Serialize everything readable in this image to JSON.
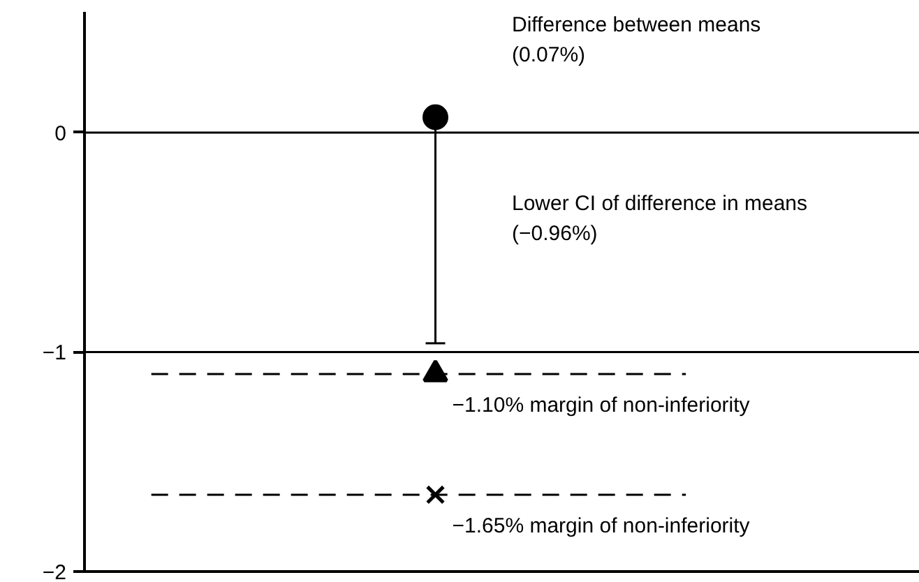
{
  "chart_data": {
    "type": "scatter",
    "categories": [
      null
    ],
    "ylim": [
      -2,
      0.55
    ],
    "yticks": [
      {
        "value": 0,
        "label": "0"
      },
      {
        "value": -1,
        "label": "−1"
      },
      {
        "value": -2,
        "label": "−2"
      }
    ],
    "tick_labels": "y",
    "grid": false,
    "series": [
      {
        "color": "#000000",
        "marker": "circle",
        "values": [
          0.07
        ],
        "errors": [
          [
            -0.96,
            0.07
          ]
        ]
      },
      {
        "color": "#000000",
        "marker": "triangle",
        "values": [
          -1.1
        ]
      },
      {
        "color": "#000000",
        "marker": "cross",
        "values": [
          -1.65
        ]
      }
    ],
    "ref_lines": [
      {
        "axis": "y",
        "value": 0,
        "line_style": "solid"
      },
      {
        "axis": "y",
        "value": -1,
        "line_style": "solid"
      },
      {
        "axis": "y",
        "value": -1.1,
        "line_style": "dashed",
        "label": "−1.10% margin of non-inferiority"
      },
      {
        "axis": "y",
        "value": -1.65,
        "line_style": "dashed",
        "label": "−1.65% margin of non-inferiority"
      }
    ],
    "annotations": [
      "Difference between means\n(0.07%)",
      "Lower CI of difference in means\n(−0.96%)"
    ]
  }
}
